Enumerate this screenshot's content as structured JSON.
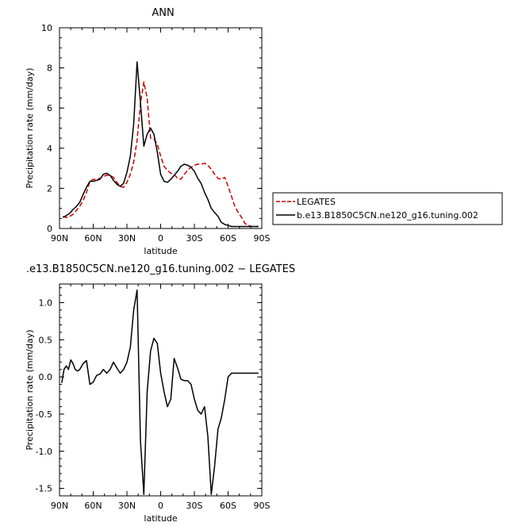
{
  "chart_data": [
    {
      "type": "line",
      "title": "ANN",
      "xlabel": "latitude",
      "ylabel": "Precipitation rate (mm/day)",
      "xlim": [
        -90,
        90
      ],
      "ylim": [
        0,
        10
      ],
      "xticks": [
        -90,
        -60,
        -30,
        0,
        30,
        60,
        90
      ],
      "xtick_labels": [
        "90N",
        "60N",
        "30N",
        "0",
        "30S",
        "60S",
        "90S"
      ],
      "yticks": [
        0,
        2,
        4,
        6,
        8,
        10
      ],
      "ytick_labels": [
        "0",
        "2",
        "4",
        "6",
        "8",
        "10"
      ],
      "grid": false,
      "legend_position": "right",
      "series": [
        {
          "name": "LEGATES",
          "color": "#cc0000",
          "dash": "dashed",
          "x": [
            -87,
            -84,
            -81,
            -78,
            -75,
            -72,
            -69,
            -66,
            -63,
            -60,
            -57,
            -54,
            -51,
            -48,
            -45,
            -42,
            -39,
            -36,
            -33,
            -30,
            -27,
            -24,
            -21,
            -18,
            -15,
            -12,
            -9,
            -6,
            -3,
            0,
            3,
            6,
            9,
            12,
            15,
            18,
            21,
            24,
            27,
            30,
            33,
            36,
            39,
            42,
            45,
            48,
            51,
            54,
            57,
            60,
            63,
            66,
            69,
            72,
            75,
            78,
            81,
            84,
            87
          ],
          "values": [
            0.6,
            0.55,
            0.6,
            0.7,
            0.9,
            1.1,
            1.4,
            1.8,
            2.35,
            2.45,
            2.45,
            2.5,
            2.6,
            2.65,
            2.65,
            2.55,
            2.3,
            2.1,
            2.05,
            2.3,
            2.7,
            3.3,
            4.4,
            6.2,
            7.3,
            6.5,
            4.5,
            4.45,
            4.2,
            3.6,
            3.1,
            2.9,
            2.75,
            2.7,
            2.5,
            2.45,
            2.7,
            2.9,
            3.05,
            3.15,
            3.2,
            3.2,
            3.25,
            3.15,
            2.95,
            2.7,
            2.5,
            2.45,
            2.55,
            2.1,
            1.6,
            1.1,
            0.8,
            0.55,
            0.25,
            0.15,
            0.1,
            0.1,
            0.1
          ]
        },
        {
          "name": "b.e13.B1850C5CN.ne120_g16.tuning.002",
          "color": "#000000",
          "dash": "solid",
          "x": [
            -87,
            -84,
            -81,
            -78,
            -75,
            -72,
            -69,
            -66,
            -63,
            -60,
            -57,
            -54,
            -51,
            -48,
            -45,
            -42,
            -39,
            -36,
            -33,
            -30,
            -27,
            -24,
            -21,
            -18,
            -15,
            -12,
            -9,
            -6,
            -3,
            0,
            3,
            6,
            9,
            12,
            15,
            18,
            21,
            24,
            27,
            30,
            33,
            36,
            39,
            42,
            45,
            48,
            51,
            54,
            57,
            60,
            63,
            66,
            69,
            72,
            75,
            78,
            81,
            84,
            87
          ],
          "values": [
            0.55,
            0.65,
            0.75,
            0.95,
            1.1,
            1.3,
            1.7,
            2.05,
            2.35,
            2.35,
            2.4,
            2.45,
            2.7,
            2.75,
            2.65,
            2.4,
            2.2,
            2.1,
            2.25,
            2.8,
            3.6,
            5.2,
            8.3,
            6.3,
            4.1,
            4.7,
            5.0,
            4.7,
            3.8,
            2.7,
            2.35,
            2.3,
            2.45,
            2.65,
            2.85,
            3.1,
            3.2,
            3.15,
            3.05,
            2.85,
            2.5,
            2.25,
            1.8,
            1.45,
            1.0,
            0.8,
            0.6,
            0.3,
            0.2,
            0.15,
            0.1,
            0.1,
            0.1,
            0.1,
            0.1,
            0.1,
            0.1,
            0.1,
            0.1
          ]
        }
      ]
    },
    {
      "type": "line",
      "title": ".e13.B1850C5CN.ne120_g16.tuning.002 − LEGATES",
      "xlabel": "latitude",
      "ylabel": "Precipitation rate (mm/day)",
      "xlim": [
        -90,
        90
      ],
      "ylim": [
        -1.6,
        1.25
      ],
      "xticks": [
        -90,
        -60,
        -30,
        0,
        30,
        60,
        90
      ],
      "xtick_labels": [
        "90N",
        "60N",
        "30N",
        "0",
        "30S",
        "60S",
        "90S"
      ],
      "yticks": [
        -1.5,
        -1.0,
        -0.5,
        0.0,
        0.5,
        1.0
      ],
      "ytick_labels": [
        "-1.5",
        "-1.0",
        "-0.5",
        "0.0",
        "0.5",
        "1.0"
      ],
      "grid": false,
      "series": [
        {
          "color": "#000000",
          "dash": "solid",
          "x": [
            -88,
            -86,
            -84,
            -82,
            -80,
            -78,
            -76,
            -74,
            -72,
            -69,
            -66,
            -63,
            -60,
            -57,
            -54,
            -51,
            -48,
            -45,
            -42,
            -39,
            -36,
            -33,
            -30,
            -27,
            -24,
            -21,
            -18,
            -15,
            -12,
            -9,
            -6,
            -3,
            0,
            3,
            6,
            9,
            12,
            15,
            18,
            21,
            24,
            27,
            30,
            33,
            36,
            39,
            42,
            45,
            48,
            51,
            54,
            57,
            60,
            63,
            66,
            69,
            72,
            75,
            78,
            81,
            84,
            87
          ],
          "values": [
            -0.08,
            0.1,
            0.15,
            0.1,
            0.23,
            0.18,
            0.1,
            0.08,
            0.1,
            0.18,
            0.22,
            -0.1,
            -0.07,
            0.02,
            0.04,
            0.1,
            0.05,
            0.1,
            0.2,
            0.12,
            0.05,
            0.1,
            0.2,
            0.4,
            0.9,
            1.17,
            -0.85,
            -1.58,
            -0.2,
            0.35,
            0.52,
            0.45,
            0.05,
            -0.2,
            -0.4,
            -0.3,
            0.25,
            0.12,
            -0.03,
            -0.05,
            -0.05,
            -0.1,
            -0.3,
            -0.45,
            -0.5,
            -0.4,
            -0.8,
            -1.58,
            -1.2,
            -0.7,
            -0.55,
            -0.3,
            0.0,
            0.05,
            0.05,
            0.05,
            0.05,
            0.05,
            0.05,
            0.05,
            0.05,
            0.05
          ]
        }
      ]
    }
  ]
}
